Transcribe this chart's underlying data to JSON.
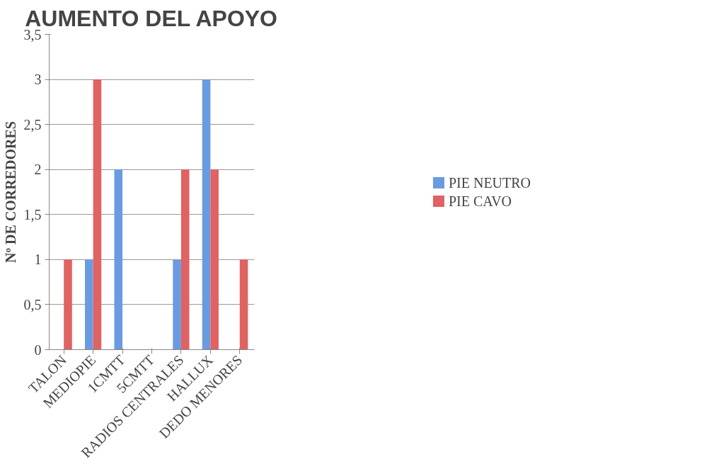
{
  "chart_data": {
    "type": "bar",
    "title": "AUMENTO DEL APOYO",
    "ylabel": "Nº DE CORREDORES",
    "categories": [
      "TALON",
      "MEDIOPIE",
      "1CMTT",
      "5CMTT",
      "RADIOS CENTRALES",
      "HALLUX",
      "DEDO MENORES"
    ],
    "series": [
      {
        "name": "PIE NEUTRO",
        "color": "#6a9be0",
        "values": [
          0,
          1,
          2,
          0,
          1,
          3,
          0
        ]
      },
      {
        "name": "PIE CAVO",
        "color": "#e06262",
        "values": [
          1,
          3,
          0,
          0,
          2,
          2,
          1
        ]
      }
    ],
    "ylim": [
      0,
      3.5
    ],
    "yticks": [
      0,
      {
        "value": 0.5,
        "label": "0,5"
      },
      1,
      {
        "value": 1.5,
        "label": "1,5"
      },
      2,
      {
        "value": 2.5,
        "label": "2,5"
      },
      3,
      {
        "value": 3.5,
        "label": "3,5"
      }
    ],
    "grid": "y",
    "legend": "right"
  }
}
